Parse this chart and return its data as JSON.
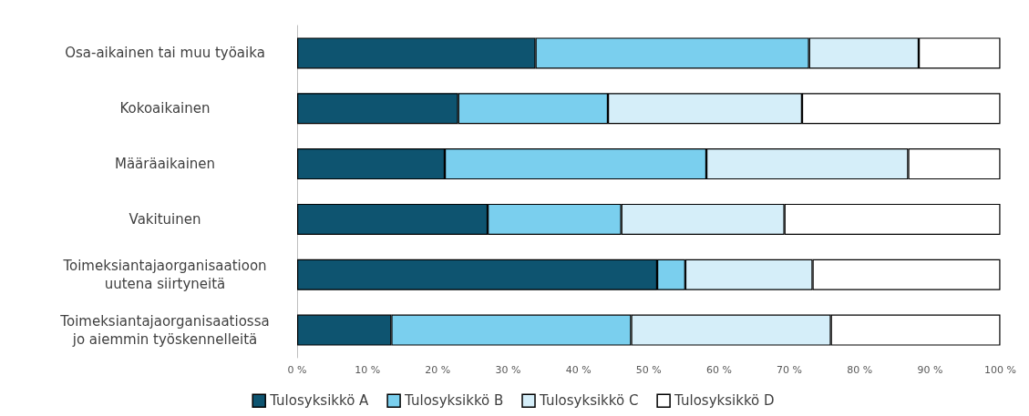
{
  "chart_data": {
    "type": "bar",
    "orientation": "horizontal",
    "stacked": true,
    "categories": [
      "Osa-aikainen tai muu työaika",
      "Kokoaikainen",
      "Määräaikainen",
      "Vakituinen",
      "Toimeksiantajaorganisaatioon\nuutena siirtyneitä",
      "Toimeksiantajaorganisaatiossa\njo aiemmin työskennelleitä"
    ],
    "series": [
      {
        "name": "Tulosyksikkö A",
        "color": "#0e5470",
        "values": [
          33.9,
          22.9,
          21.0,
          27.1,
          51.2,
          13.4
        ]
      },
      {
        "name": "Tulosyksikkö B",
        "color": "#7acfee",
        "values": [
          38.9,
          21.3,
          37.2,
          19.0,
          4.0,
          34.1
        ]
      },
      {
        "name": "Tulosyksikkö C",
        "color": "#d5eef9",
        "values": [
          15.6,
          27.6,
          28.7,
          23.2,
          18.1,
          28.4
        ]
      },
      {
        "name": "Tulosyksikkö D",
        "color": "#ffffff",
        "values": [
          11.6,
          28.2,
          13.1,
          30.7,
          26.7,
          24.1
        ]
      }
    ],
    "xlim": [
      0,
      100
    ],
    "xticks": [
      {
        "value": 0,
        "label": "0 %"
      },
      {
        "value": 10,
        "label": "10 %"
      },
      {
        "value": 20,
        "label": "20 %"
      },
      {
        "value": 30,
        "label": "30 %"
      },
      {
        "value": 40,
        "label": "40 %"
      },
      {
        "value": 50,
        "label": "50 %"
      },
      {
        "value": 60,
        "label": "60 %"
      },
      {
        "value": 70,
        "label": "70 %"
      },
      {
        "value": 80,
        "label": "80 %"
      },
      {
        "value": 90,
        "label": "90 %"
      },
      {
        "value": 100,
        "label": "100 %"
      }
    ],
    "grid": false,
    "legend": "bottom"
  }
}
